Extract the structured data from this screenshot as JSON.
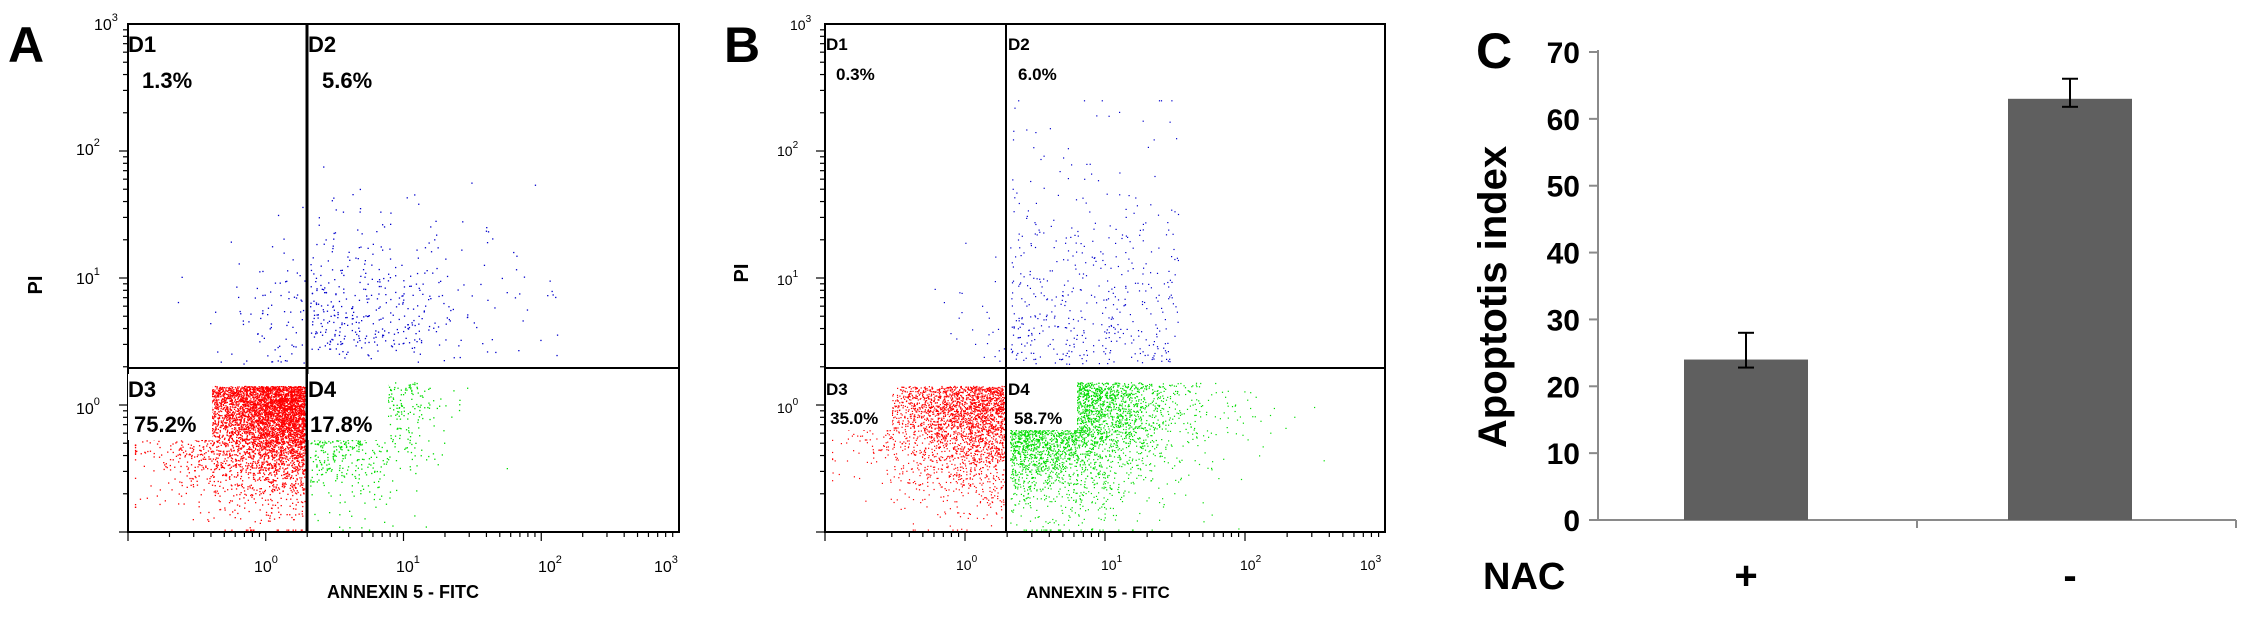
{
  "panels": [
    {
      "letter": "A",
      "y_axis_label": "PI",
      "x_axis_label": "ANNEXIN 5 - FITC",
      "x_ticks": [
        "10",
        "10",
        "10",
        "10"
      ],
      "x_tick_exps": [
        "0",
        "1",
        "2",
        "3"
      ],
      "y_ticks": [
        "10",
        "10",
        "10"
      ],
      "y_tick_exps": [
        "0",
        "1",
        "2"
      ],
      "y_top_label": "10",
      "y_top_exp": "3",
      "quadrants": [
        {
          "name": "D1",
          "percent": "1.3%"
        },
        {
          "name": "D2",
          "percent": "5.6%"
        },
        {
          "name": "D3",
          "percent": "75.2%"
        },
        {
          "name": "D4",
          "percent": "17.8%"
        }
      ]
    },
    {
      "letter": "B",
      "y_axis_label": "PI",
      "x_axis_label": "ANNEXIN 5 - FITC",
      "x_ticks": [
        "10",
        "10",
        "10",
        "10"
      ],
      "x_tick_exps": [
        "0",
        "1",
        "2",
        "3"
      ],
      "y_ticks": [
        "10",
        "10",
        "10"
      ],
      "y_tick_exps": [
        "0",
        "1",
        "2"
      ],
      "y_top_label": "10",
      "y_top_exp": "3",
      "quadrants": [
        {
          "name": "D1",
          "percent": "0.3%"
        },
        {
          "name": "D2",
          "percent": "6.0%"
        },
        {
          "name": "D3",
          "percent": "35.0%"
        },
        {
          "name": "D4",
          "percent": "58.7%"
        }
      ]
    }
  ],
  "panel_c": {
    "letter": "C",
    "row_label": "NAC"
  },
  "colors": {
    "live": "#ff0000",
    "early_apoptotic": "#00dd00",
    "late_apoptotic": "#0000cc",
    "bar": "#5f5f5f"
  },
  "chart_data": [
    {
      "type": "scatter",
      "panel": "A",
      "xlabel": "ANNEXIN 5 - FITC",
      "ylabel": "PI",
      "x_scale": "log",
      "y_scale": "log",
      "xlim": [
        0.1,
        1000
      ],
      "ylim": [
        0.1,
        1000
      ],
      "gates": {
        "x": 2,
        "y": 2
      },
      "quadrant_percent": {
        "D1": 1.3,
        "D2": 5.6,
        "D3": 75.2,
        "D4": 17.8
      }
    },
    {
      "type": "scatter",
      "panel": "B",
      "xlabel": "ANNEXIN 5 - FITC",
      "ylabel": "PI",
      "x_scale": "log",
      "y_scale": "log",
      "xlim": [
        0.1,
        1000
      ],
      "ylim": [
        0.1,
        1000
      ],
      "gates": {
        "x": 2,
        "y": 2
      },
      "quadrant_percent": {
        "D1": 0.3,
        "D2": 6.0,
        "D3": 35.0,
        "D4": 58.7
      }
    },
    {
      "type": "bar",
      "panel": "C",
      "ylabel": "Apoptotis index",
      "xlabel": "NAC",
      "categories": [
        "+",
        "-"
      ],
      "values": [
        24,
        63
      ],
      "errors": [
        4,
        3
      ],
      "ylim": [
        0,
        70
      ],
      "yticks": [
        "0",
        "10",
        "20",
        "30",
        "40",
        "50",
        "60",
        "70"
      ],
      "grid": false
    }
  ]
}
